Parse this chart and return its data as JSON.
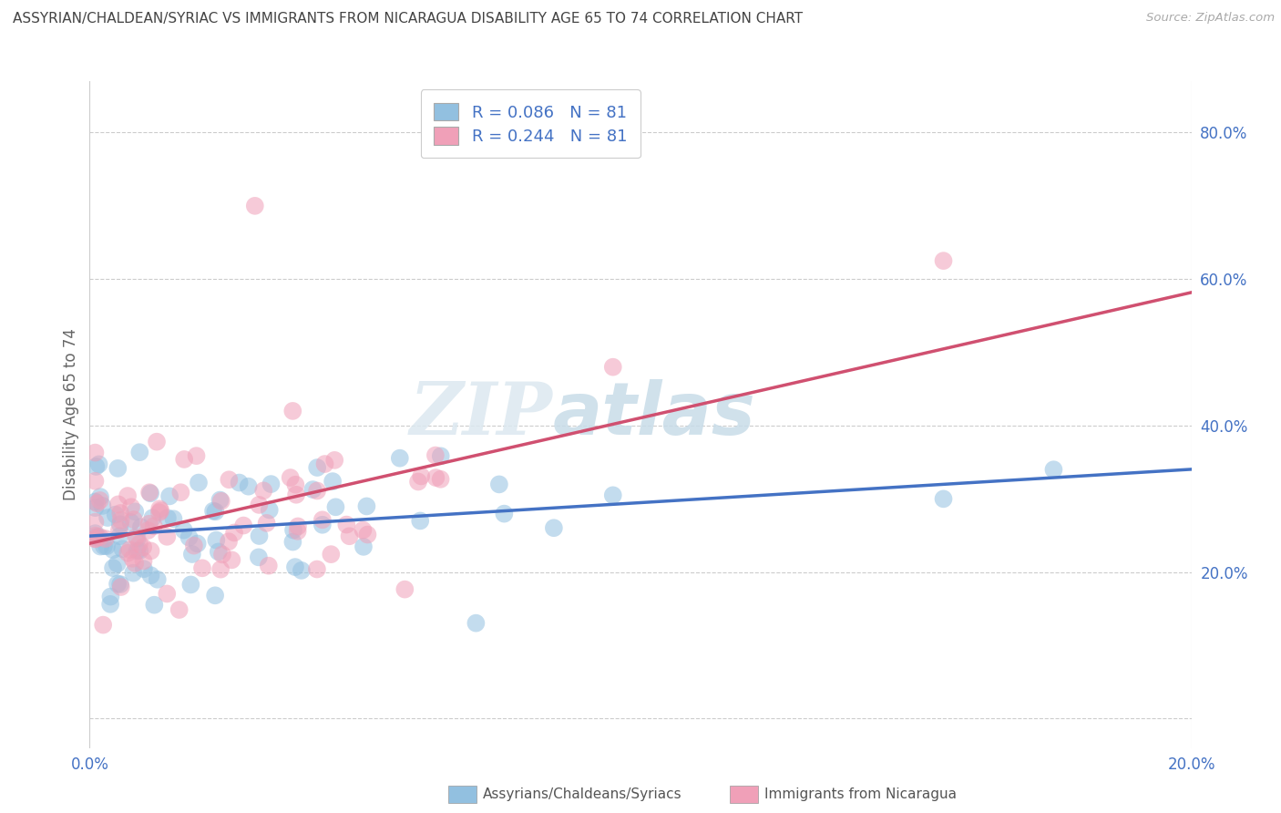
{
  "title": "ASSYRIAN/CHALDEAN/SYRIAC VS IMMIGRANTS FROM NICARAGUA DISABILITY AGE 65 TO 74 CORRELATION CHART",
  "source": "Source: ZipAtlas.com",
  "ylabel": "Disability Age 65 to 74",
  "y_ticks": [
    0.0,
    0.2,
    0.4,
    0.6,
    0.8
  ],
  "y_tick_labels": [
    "",
    "20.0%",
    "40.0%",
    "60.0%",
    "80.0%"
  ],
  "x_range": [
    0.0,
    0.2
  ],
  "y_range": [
    -0.04,
    0.87
  ],
  "R_blue": 0.086,
  "N_blue": 81,
  "R_pink": 0.244,
  "N_pink": 81,
  "blue_color": "#92c0e0",
  "pink_color": "#f0a0b8",
  "line_blue": "#4472c4",
  "line_pink": "#d05070",
  "legend_label_blue": "Assyrians/Chaldeans/Syriacs",
  "legend_label_pink": "Immigrants from Nicaragua",
  "watermark_zip": "ZIP",
  "watermark_atlas": "atlas",
  "background_color": "#ffffff",
  "grid_color": "#cccccc",
  "title_color": "#444444",
  "axis_label_color": "#4472c4",
  "tick_color": "#4472c4"
}
